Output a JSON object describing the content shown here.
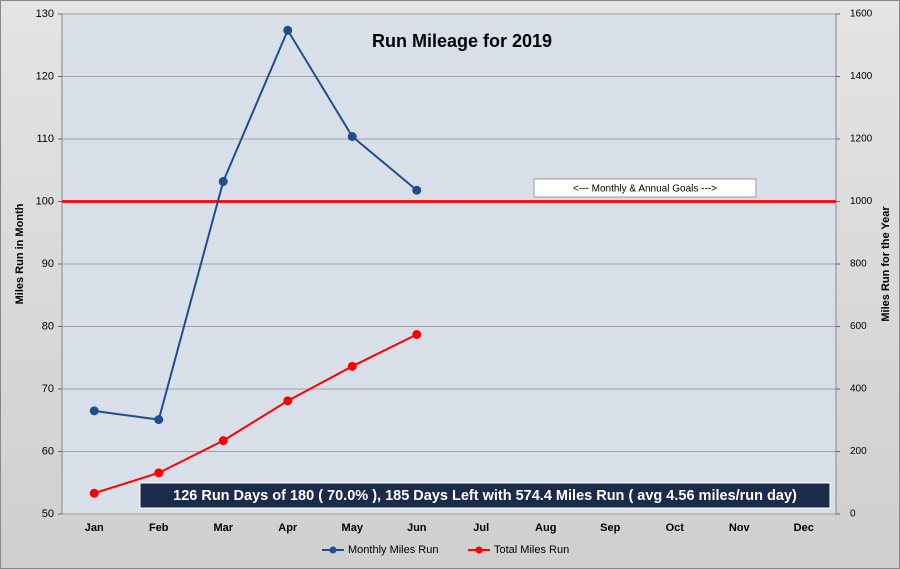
{
  "chart_data": {
    "type": "line",
    "title": "Run Mileage for 2019",
    "y_label": "Miles Run in Month",
    "y2_label": "Miles Run for the Year",
    "categories": [
      "Jan",
      "Feb",
      "Mar",
      "Apr",
      "May",
      "Jun",
      "Jul",
      "Aug",
      "Sep",
      "Oct",
      "Nov",
      "Dec"
    ],
    "series": [
      {
        "name": "Monthly Miles Run",
        "color": "#1f4e8c",
        "values": [
          66.5,
          65.1,
          103.2,
          127.4,
          110.4,
          101.8,
          null,
          null,
          null,
          null,
          null,
          null
        ]
      },
      {
        "name": "Total Miles Run",
        "color": "#ff0000",
        "axis": "y2",
        "values": [
          66.5,
          131.6,
          234.8,
          362.2,
          472.6,
          574.4,
          null,
          null,
          null,
          null,
          null,
          null
        ]
      }
    ],
    "goals": {
      "label": "<--- Monthly & Annual Goals --->",
      "color": "#ff0000",
      "monthly": 100,
      "annual": 1000
    },
    "summary": "126 Run Days of  180 ( 70.0% ), 185 Days Left with 574.4 Miles Run ( avg 4.56 miles/run day)",
    "ylim": [
      50,
      130
    ],
    "yticks": [
      50,
      60,
      70,
      80,
      90,
      100,
      110,
      120,
      130
    ],
    "y2lim": [
      0,
      1600
    ],
    "y2ticks": [
      0,
      200,
      400,
      600,
      800,
      1000,
      1200,
      1400,
      1600
    ],
    "grid": true,
    "legend": "bottom"
  }
}
